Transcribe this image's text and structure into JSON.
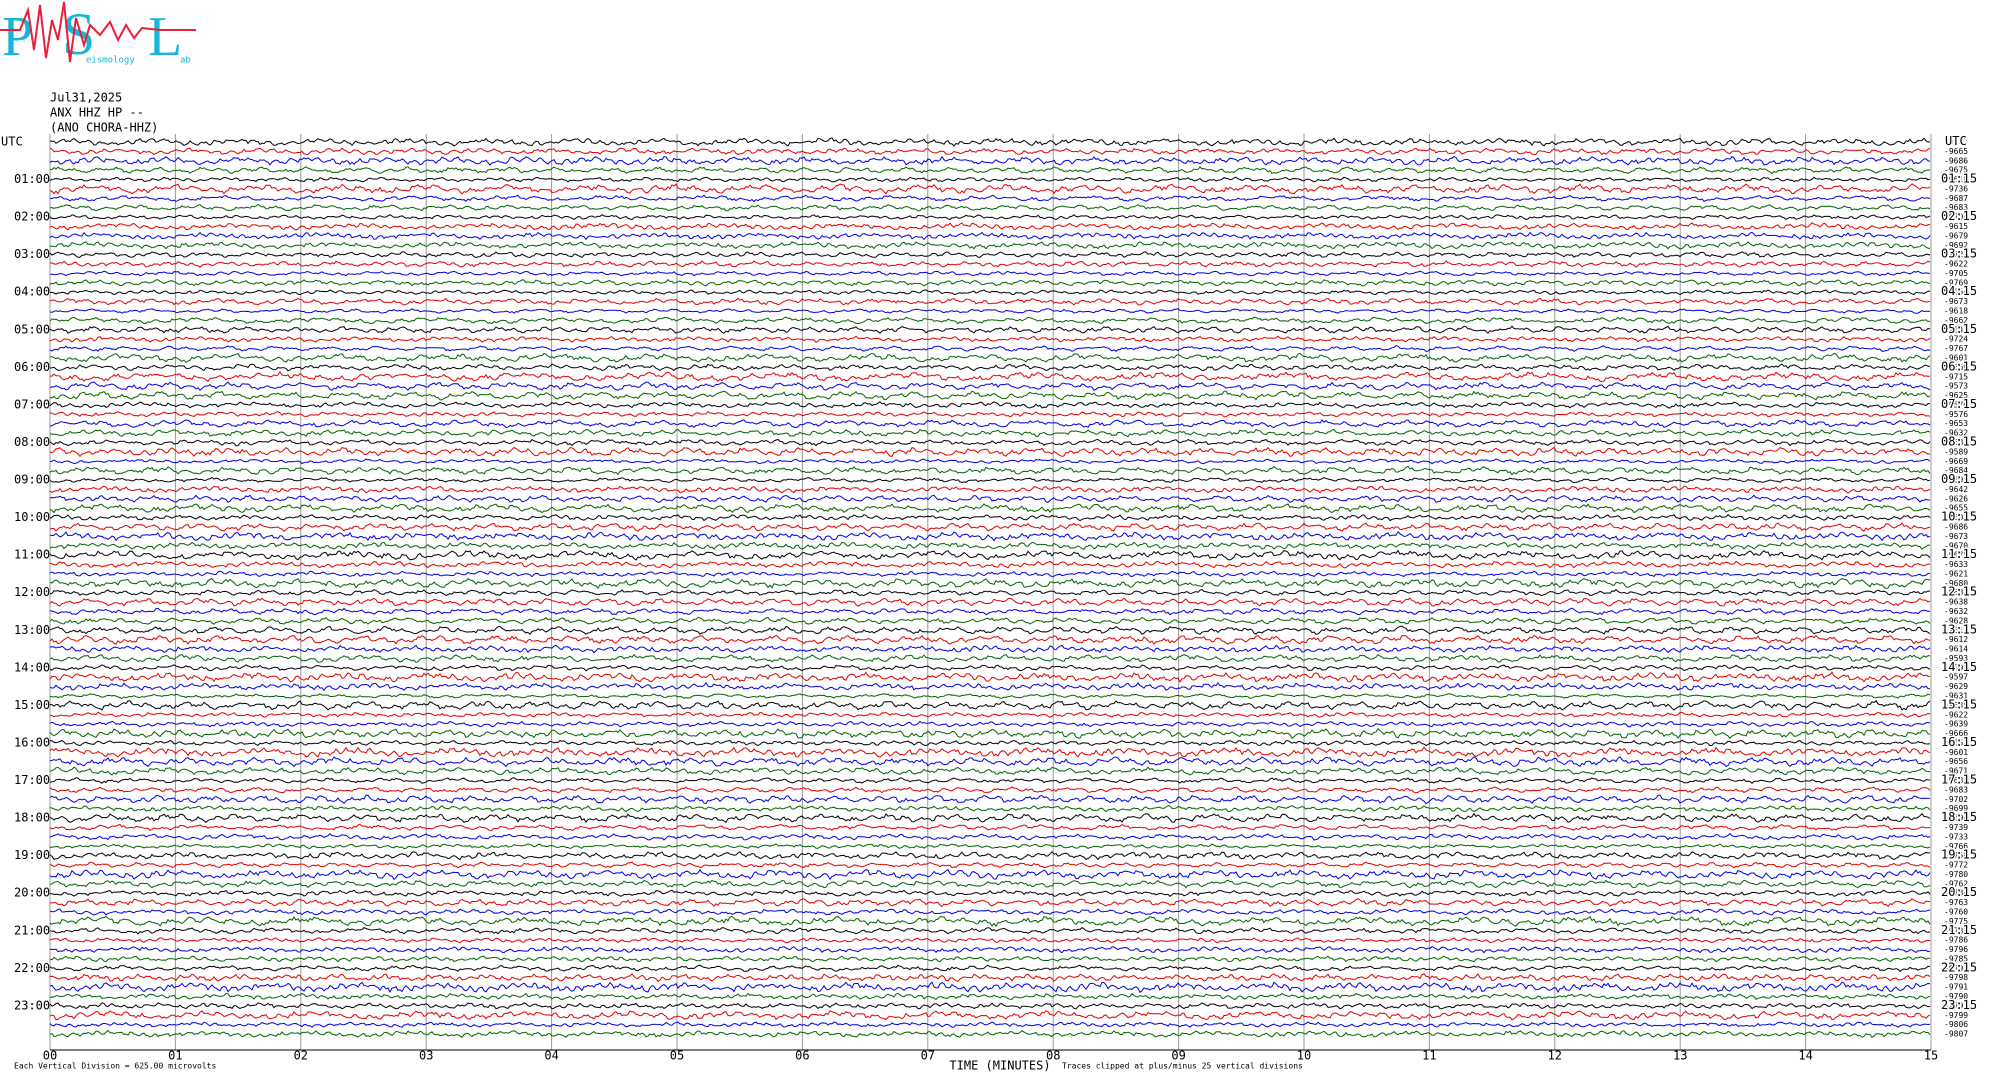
{
  "logo": {
    "letters": [
      "P",
      "S",
      "L"
    ],
    "subtexts": [
      "eismology",
      "ab"
    ]
  },
  "chart_data": {
    "type": "helicorder",
    "date": "Jul31,2025",
    "station": "ANX HHZ HP --",
    "station_name": "(ANO CHORA-HHZ)",
    "left_labels": [
      "UTC",
      "01:00",
      "02:00",
      "03:00",
      "04:00",
      "05:00",
      "06:00",
      "07:00",
      "08:00",
      "09:00",
      "10:00",
      "11:00",
      "12:00",
      "13:00",
      "14:00",
      "15:00",
      "16:00",
      "17:00",
      "18:00",
      "19:00",
      "20:00",
      "21:00",
      "22:00",
      "23:00"
    ],
    "right_labels": [
      "UTC",
      "01:15",
      "02:15",
      "03:15",
      "04:15",
      "05:15",
      "06:15",
      "07:15",
      "08:15",
      "09:15",
      "10:15",
      "11:15",
      "12:15",
      "13:15",
      "14:15",
      "15:15",
      "16:15",
      "17:15",
      "18:15",
      "19:15",
      "20:15",
      "21:15",
      "22:15",
      "23:15"
    ],
    "row_offsets": [
      -9667,
      -9665,
      -9686,
      -9675,
      -9618,
      -9736,
      -9687,
      -9683,
      -9704,
      -9615,
      -9679,
      -9692,
      -9721,
      -9622,
      -9705,
      -9769,
      -9654,
      -9673,
      -9618,
      -9662,
      -9647,
      -9724,
      -9767,
      -9601,
      -9669,
      -9715,
      -9573,
      -9625,
      -9576,
      -9576,
      -9653,
      -9632,
      -9687,
      -9589,
      -9669,
      -9684,
      -9691,
      -9642,
      -9626,
      -9655,
      -9601,
      -9686,
      -9673,
      -9670,
      -9675,
      -9633,
      -9621,
      -9680,
      -9681,
      -9638,
      -9632,
      -9628,
      -9617,
      -9612,
      -9614,
      -9593,
      -9592,
      -9597,
      -9629,
      -9631,
      -9635,
      -9622,
      -9639,
      -9666,
      -9653,
      -9601,
      -9656,
      -9671,
      -9687,
      -9683,
      -9702,
      -9699,
      -9694,
      -9739,
      -9733,
      -9766,
      -9758,
      -9772,
      -9780,
      -9762,
      -9784,
      -9763,
      -9760,
      -9775,
      -9787,
      -9786,
      -9796,
      -9785,
      -9793,
      -9798,
      -9791,
      -9790,
      -9792,
      -9799,
      -9806,
      -9807
    ],
    "trace_colors": [
      "#000000",
      "#e00000",
      "#0000e0",
      "#006400"
    ],
    "xlabel": "TIME (MINUTES)",
    "xlim": [
      0,
      15
    ],
    "xticks": [
      {
        "value": 0,
        "label": "00"
      },
      {
        "value": 1,
        "label": "01"
      },
      {
        "value": 2,
        "label": "02"
      },
      {
        "value": 3,
        "label": "03"
      },
      {
        "value": 4,
        "label": "04"
      },
      {
        "value": 5,
        "label": "05"
      },
      {
        "value": 6,
        "label": "06"
      },
      {
        "value": 7,
        "label": "07"
      },
      {
        "value": 8,
        "label": "08"
      },
      {
        "value": 9,
        "label": "09"
      },
      {
        "value": 10,
        "label": "10"
      },
      {
        "value": 11,
        "label": "11"
      },
      {
        "value": 12,
        "label": "12"
      },
      {
        "value": 13,
        "label": "13"
      },
      {
        "value": 14,
        "label": "14"
      },
      {
        "value": 15,
        "label": "15"
      }
    ],
    "scale_note": "Each Vertical Division =  625.00 microvolts",
    "clip_note": "Traces clipped at plus/minus 25 vertical divisions",
    "grid": true
  }
}
